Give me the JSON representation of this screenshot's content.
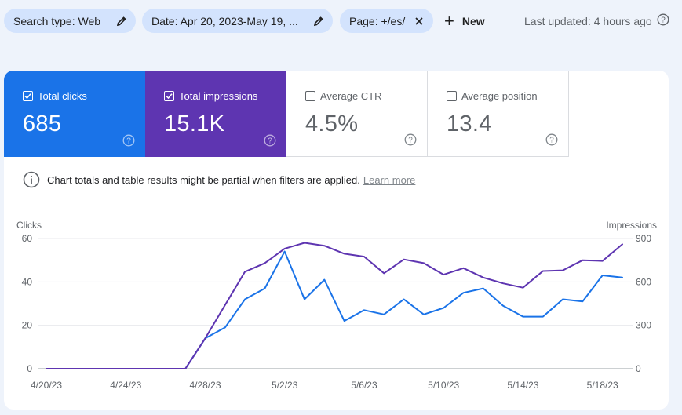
{
  "filters": {
    "chips": [
      {
        "label": "Search type: Web",
        "icon": "pencil-icon"
      },
      {
        "label": "Date: Apr 20, 2023-May 19, ...",
        "icon": "pencil-icon"
      },
      {
        "label": "Page: +/es/",
        "icon": "close-icon"
      }
    ],
    "new_label": "New",
    "last_updated": "Last updated: 4 hours ago"
  },
  "metrics": {
    "clicks": {
      "label": "Total clicks",
      "value": "685",
      "checked": true,
      "color": "#1a73e8"
    },
    "impressions": {
      "label": "Total impressions",
      "value": "15.1K",
      "checked": true,
      "color": "#5e35b1"
    },
    "ctr": {
      "label": "Average CTR",
      "value": "4.5%",
      "checked": false
    },
    "position": {
      "label": "Average position",
      "value": "13.4",
      "checked": false
    }
  },
  "notice": {
    "text": "Chart totals and table results might be partial when filters are applied.",
    "link": "Learn more"
  },
  "chart_data": {
    "type": "line",
    "ylabel_left": "Clicks",
    "ylabel_right": "Impressions",
    "yticks_left": [
      "60",
      "40",
      "20",
      "0"
    ],
    "yticks_right": [
      "900",
      "600",
      "300",
      "0"
    ],
    "ylim_left": [
      0,
      60
    ],
    "ylim_right": [
      0,
      900
    ],
    "x": [
      "4/20/23",
      "4/21/23",
      "4/22/23",
      "4/23/23",
      "4/24/23",
      "4/25/23",
      "4/26/23",
      "4/27/23",
      "4/28/23",
      "4/29/23",
      "4/30/23",
      "5/1/23",
      "5/2/23",
      "5/3/23",
      "5/4/23",
      "5/5/23",
      "5/6/23",
      "5/7/23",
      "5/8/23",
      "5/9/23",
      "5/10/23",
      "5/11/23",
      "5/12/23",
      "5/13/23",
      "5/14/23",
      "5/15/23",
      "5/16/23",
      "5/17/23",
      "5/18/23",
      "5/19/23"
    ],
    "xtick_labels": [
      "4/20/23",
      "4/24/23",
      "4/28/23",
      "5/2/23",
      "5/6/23",
      "5/10/23",
      "5/14/23",
      "5/18/23"
    ],
    "xtick_indices": [
      0,
      4,
      8,
      12,
      16,
      20,
      24,
      28
    ],
    "series": [
      {
        "name": "Clicks",
        "axis": "left",
        "color": "#1a73e8",
        "values": [
          0,
          0,
          0,
          0,
          0,
          0,
          0,
          0,
          14,
          19,
          32,
          37,
          54,
          32,
          41,
          22,
          27,
          25,
          32,
          25,
          28,
          35,
          37,
          29,
          24,
          24,
          32,
          31,
          43,
          42
        ]
      },
      {
        "name": "Impressions",
        "axis": "right",
        "color": "#5e35b1",
        "values": [
          0,
          0,
          0,
          0,
          0,
          0,
          0,
          0,
          210,
          440,
          670,
          730,
          830,
          870,
          850,
          795,
          775,
          660,
          755,
          730,
          650,
          695,
          630,
          590,
          560,
          675,
          680,
          750,
          745,
          860
        ]
      }
    ],
    "grid": true
  }
}
